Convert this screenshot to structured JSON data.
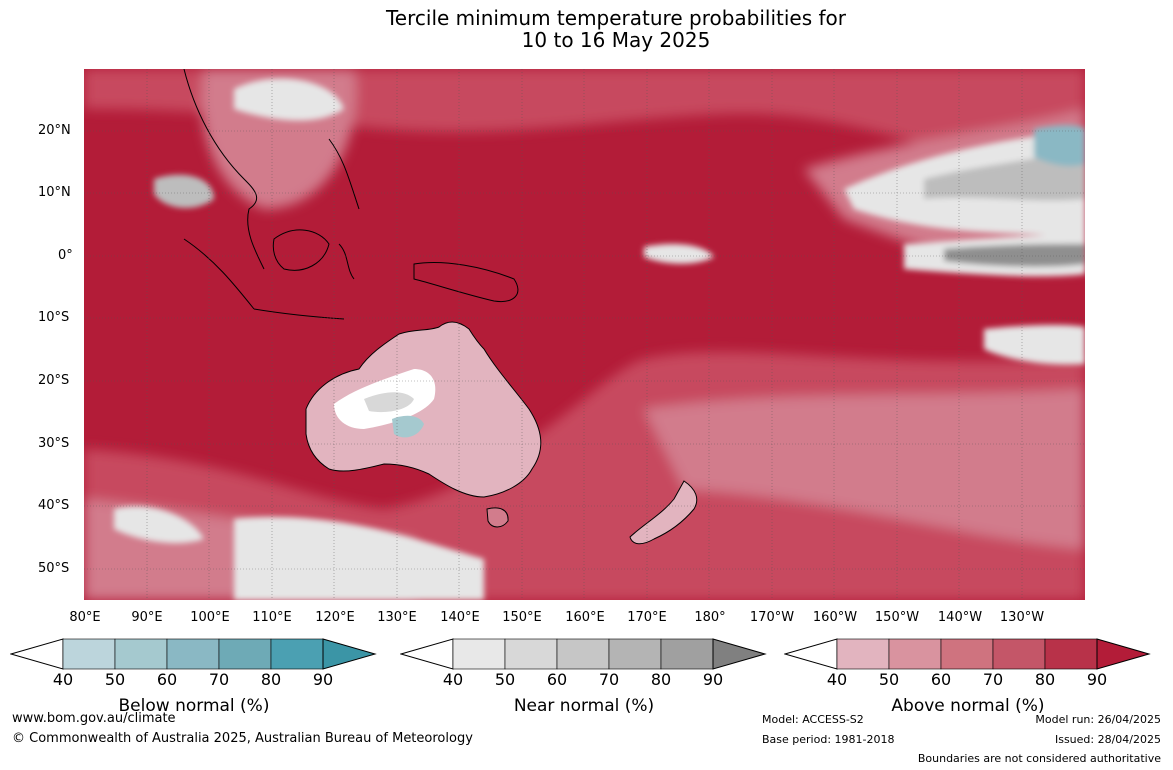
{
  "title": {
    "line1": "Tercile minimum temperature probabilities for",
    "line2": "10 to 16 May 2025"
  },
  "map": {
    "lat_labels": [
      "20°N",
      "10°N",
      "0°",
      "10°S",
      "20°S",
      "30°S",
      "40°S",
      "50°S"
    ],
    "lon_labels": [
      "80°E",
      "90°E",
      "100°E",
      "110°E",
      "120°E",
      "130°E",
      "140°E",
      "150°E",
      "160°E",
      "170°E",
      "180°",
      "170°W",
      "160°W",
      "150°W",
      "140°W",
      "130°W"
    ],
    "colors": {
      "ocean_high": "#b31c38",
      "warm": "#c74a5e",
      "mid": "#d27c8c",
      "light": "#e2b4bf",
      "near_light": "#e6e6e6",
      "near_mid": "#bdbdbd",
      "near_dark": "#8f8f8f",
      "below": "#8ab8c4",
      "below_dark": "#4ba0b2",
      "land_white": "#ffffff"
    }
  },
  "legend": {
    "ticks": [
      "40",
      "50",
      "60",
      "70",
      "80",
      "90"
    ],
    "below": {
      "title": "Below normal (%)",
      "colors": [
        "#bcd5dc",
        "#a5c9cf",
        "#8ab8c4",
        "#6eaab6",
        "#4ba0b2",
        "#3b95a6"
      ]
    },
    "near": {
      "title": "Near normal (%)",
      "colors": [
        "#e8e8e8",
        "#d8d8d8",
        "#c6c6c6",
        "#b4b4b4",
        "#a0a0a0",
        "#808080"
      ]
    },
    "above": {
      "title": "Above normal (%)",
      "colors": [
        "#e2b4bf",
        "#d9939f",
        "#cf737f",
        "#c45668",
        "#b83249",
        "#b31c38"
      ]
    }
  },
  "footer": {
    "url": "www.bom.gov.au/climate",
    "copyright": "© Commonwealth of Australia 2025, Australian Bureau of Meteorology",
    "model": "Model: ACCESS-S2",
    "base_period": "Base period: 1981-2018",
    "model_run": "Model run: 26/04/2025",
    "issued": "Issued: 28/04/2025",
    "disclaimer": "Boundaries are not considered authoritative"
  }
}
